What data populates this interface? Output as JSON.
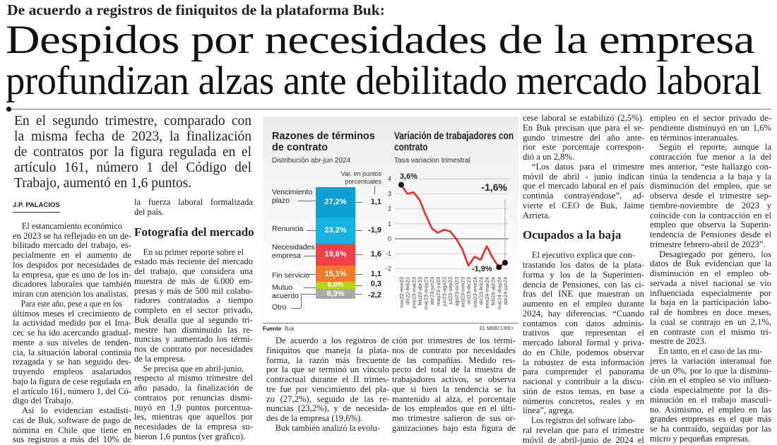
{
  "kicker": "De acuerdo a registros de finiquitos de la plataforma Buk:",
  "headline": [
    "Despidos por necesidades de la empresa",
    "profundizan alzas ante debilitado mercado laboral"
  ],
  "lead": [
    "En el segundo trimestre, comparado con",
    "la misma fecha de 2023, la finalización",
    "de contratos por la figura regulada en el",
    "artículo 161, número 1 del Código del",
    "Trabajo, aumentó en 1,6 puntos."
  ],
  "columns": [
    [
      {
        "type": "byline",
        "text": "J.P. PALACIOS"
      },
      {
        "type": "p",
        "lines": [
          "El estancamiento económico",
          "en 2023 se ha reflejado en un de-",
          "bilitado mercado del trabajo, es-",
          "pecialmente en el aumento de",
          "los despidos por necesidades de",
          "la empresa, que es uno de los in-",
          "dicadores laborales que también",
          "miran con atención los analistas."
        ]
      },
      {
        "type": "p",
        "lines": [
          "Para este año, pese a que en los",
          "últimos meses el crecimiento de",
          "la actividad medido por el Ima-",
          "cec se ha ido acercando gradual-",
          "mente a sus niveles de tenden-",
          "cia, la situación laboral continúa",
          "rezagada y se han seguido des-",
          "truyendo empleos asalariados",
          "bajo la figura de cese regulada en",
          "el artículo 161, número 1, del Có-",
          "digo del Trabajo."
        ]
      },
      {
        "type": "p",
        "lines": [
          "Así lo evidencian estadísti-",
          "cas de Buk, software de pago de",
          "nómina en Chile que tiene en",
          "sus registros a más del 10% de"
        ],
        "open": true
      }
    ],
    [
      {
        "type": "p",
        "cont": true,
        "lines": [
          "la fuerza laboral formalizada",
          "del país."
        ]
      },
      {
        "type": "h",
        "text": "Fotografía del mercado"
      },
      {
        "type": "p",
        "lines": [
          "En su primer reporte sobre el",
          "estado más reciente del mercado",
          "del trabajo, que considera una",
          "muestra de más de 6.000 em-",
          "presas y más de 500 mil colabo-",
          "radores contratados a tiempo",
          "completo en el sector privado,",
          "Buk detalla que al segundo tri-",
          "mestre han disminuido las re-",
          "nuncias y aumentado los térmi-",
          "nos de contrato por necesidades",
          "de la empresa."
        ]
      },
      {
        "type": "p",
        "lines": [
          "Se precisa que en abril-junio,",
          "respecto al mismo trimestre del",
          "año pasado, la finalización de",
          "contratos por renuncias dismi-",
          "nuyó en 1,9 puntos porcentua-",
          "les, mientras que aquellos por",
          "necesidades de la empresa su-",
          "bieron 1,6 puntos (ver gráfico)."
        ]
      }
    ],
    [
      {
        "type": "p",
        "lines": [
          "De acuerdo a los registros de",
          "finiquitos que maneja la plata-",
          "forma, la razón más frecuente",
          "por la que se terminó un vínculo",
          "contractual durante el II trimes-",
          "tre fue por vencimiento del pla-",
          "zo (27,2%), seguido de las re-",
          "nuncias (23,2%), y de necesida-",
          "des de la empresa (19,6%)."
        ]
      },
      {
        "type": "p",
        "lines": [
          "Buk también analizó la evolu-"
        ],
        "open": true
      }
    ],
    [
      {
        "type": "p",
        "cont": true,
        "lines": [
          "ción por trimestres de los térmi-",
          "nos de contrato por necesidades",
          "de las compañías. Medido res-",
          "pecto del total de la muestra de",
          "trabajadores activos, se observa",
          "que si bien la tendencia se ha",
          "mantenido al alza, el porcentaje",
          "de los empleados que en el últi-",
          "mo trimestre salieron de sus or-",
          "ganizaciones bajo esta figura de"
        ],
        "open": true
      }
    ],
    [
      {
        "type": "p",
        "cont": true,
        "lines": [
          "cese laboral se estabilizó (2,5%).",
          "En Buk precisan que para el se-",
          "gundo trimestre del año ante-",
          "rior este porcentaje correspon-",
          "dió a un 2,8%."
        ]
      },
      {
        "type": "p",
        "lines": [
          "“Los datos para el trimestre",
          "móvil de abril - junio indican",
          "que el mercado laboral en el país",
          "continúa contrayéndose”, ad-",
          "vierte el CEO de Buk, Jaime",
          "Arrieta."
        ]
      },
      {
        "type": "h",
        "text": "Ocupados a la baja"
      },
      {
        "type": "p",
        "lines": [
          "El ejecutivo explica que con-",
          "trastando los datos de la plata-",
          "forma y los de la Superinten-",
          "dencia de Pensiones, con las ci-",
          "fras del INE que muestran un",
          "aumento en el empleo durante",
          "2024, hay diferencias. “Cuando",
          "contamos con datos adminis-",
          "trativos que representan el",
          "mercado laboral formal y priva-",
          "do en Chile, podemos observar",
          "la robustez de esta información",
          "para comprender el panorama",
          "nacional y contribuir a la discu-",
          "sión de estos temas, en base a",
          "números concretos, reales y en",
          "línea”, agrega."
        ]
      },
      {
        "type": "p",
        "lines": [
          "Los registros del software labo-",
          "ral revelan que para el trimestre",
          "móvil de abril-junio de 2024 el"
        ],
        "open": true
      }
    ],
    [
      {
        "type": "p",
        "cont": true,
        "lines": [
          "empleo en el sector privado de-",
          "pendiente disminuyó en un 1,6%",
          "en términos interanuales."
        ]
      },
      {
        "type": "p",
        "lines": [
          "Según el reporte, aunque la",
          "contracción fue menor a la del",
          "mes anterior, “este hallazgo con-",
          "tinúa la tendencia a la baja y la",
          "disminución del empleo, que se",
          "observa desde el trimestre sep-",
          "tiembre-noviembre de 2023 y",
          "coincide con la contracción en el",
          "empleo que observa la Superin-",
          "tendencia de Pensiones desde el",
          "trimestre febrero-abril de 2023”."
        ]
      },
      {
        "type": "p",
        "lines": [
          "Desagregado por género, los",
          "datos de Buk evidencian que la",
          "disminución en el empleo ob-",
          "servada a nivel nacional se vio",
          "influenciada especialmente por",
          "la baja en la participación labo-",
          "ral de hombres en doce meses,",
          "la cual se contrajo en un 2,1%,",
          "en contraste con el mismo tri-",
          "mestre de 2023."
        ]
      },
      {
        "type": "p",
        "lines": [
          "En tanto, en el caso de las mu-",
          "jeres la variación interanual fue",
          "de un 0%, por lo que la disminu-",
          "ción en el empleo se vio influen-",
          "ciada especialmente por la dis-",
          "minución en el trabajo masculi-",
          "no. Asimismo, el empleo en las",
          "grandes empresas es el que más",
          "se ha contraído, seguidas por las",
          "micro y pequeñas empresas."
        ]
      }
    ]
  ],
  "chart_data": [
    {
      "type": "bar",
      "title": "Razones de términos de contrato",
      "subtitle": "Distribución abr-jun 2024",
      "var_header": [
        "Var. en puntos",
        "porcentuales"
      ],
      "categories": [
        "Vencimiento plazo",
        "Renuncia",
        "Necesidades empresa",
        "Fin servicio",
        "Mutuo acuerdo",
        "Otro"
      ],
      "label_lines": [
        [
          "Vencimiento",
          "plazo"
        ],
        [
          "Renuncia"
        ],
        [
          "Necesidades",
          "empresa"
        ],
        [
          "Fin servicio"
        ],
        [
          "Mutuo",
          "acuerdo"
        ],
        [
          "Otro"
        ]
      ],
      "values": [
        27.2,
        23.2,
        19.6,
        15.1,
        6.0,
        8.9
      ],
      "value_labels": [
        "27,2%",
        "23,2%",
        "19,6%",
        "15,1%",
        "6,0%",
        "8,9%"
      ],
      "variation_labels": [
        "1,1",
        "-1,9",
        "1,6",
        "1,1",
        "0,3",
        "-2,2"
      ],
      "colors": [
        "#0aa0d2",
        "#16b3e0",
        "#f0404a",
        "#f57a2a",
        "#b5d31b",
        "#a9a9a9"
      ]
    },
    {
      "type": "line",
      "title": "Variación de trabajadores con contrato",
      "subtitle": "Tasa variacion trimestral",
      "x": [
        "nov22-ene23",
        "dic22-feb23",
        "ene23-mar23",
        "feb23-abr23",
        "mar23-may23",
        "abr23-jun23",
        "may23-jul23",
        "jun23-ago23",
        "jul23-sep23",
        "ago23-oct23",
        "sep23-nov23",
        "oct23-dic23",
        "nov23-ene24",
        "dic23-feb24",
        "ene24-mar24",
        "feb24-abr24",
        "mar24-may24",
        "abr24-jun24"
      ],
      "values": [
        3.6,
        3.0,
        3.1,
        2.6,
        1.6,
        0.7,
        0.4,
        0.6,
        0.5,
        0.0,
        -0.7,
        -1.8,
        -1.2,
        -1.4,
        -0.5,
        -1.3,
        -1.9,
        -1.6
      ],
      "yticks": [
        4,
        3,
        2,
        1,
        0,
        -1,
        -2
      ],
      "ylim": [
        -2,
        4
      ],
      "annotations": {
        "first": "3,6%",
        "min": "-1,9%",
        "last": "-1,6%"
      },
      "line_color": "#ee2b2b"
    }
  ],
  "source": {
    "label": "Fuente",
    "value": "Buk"
  },
  "publisher": "EL MERCURIO"
}
